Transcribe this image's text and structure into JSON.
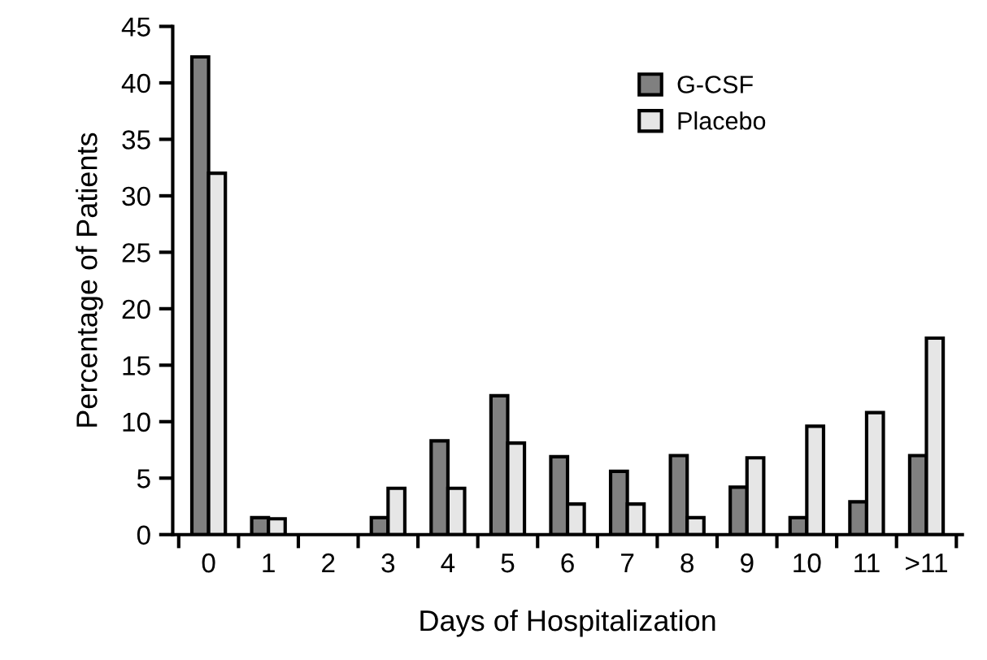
{
  "chart_data": {
    "type": "bar",
    "xlabel": "Days of Hospitalization",
    "ylabel": "Percentage of Patients",
    "categories": [
      "0",
      "1",
      "2",
      "3",
      "4",
      "5",
      "6",
      "7",
      "8",
      "9",
      "10",
      "11",
      ">11"
    ],
    "series": [
      {
        "name": "G-CSF",
        "color": "#808080",
        "values": [
          42.3,
          1.5,
          0,
          1.5,
          8.3,
          12.3,
          6.9,
          5.6,
          7.0,
          4.2,
          1.5,
          2.9,
          7.0
        ]
      },
      {
        "name": "Placebo",
        "color": "#e6e6e6",
        "values": [
          32.0,
          1.4,
          0,
          4.1,
          4.1,
          8.1,
          2.7,
          2.7,
          1.5,
          6.8,
          9.6,
          10.8,
          17.4
        ]
      }
    ],
    "ylim": [
      0,
      45
    ],
    "yticks": [
      0,
      5,
      10,
      15,
      20,
      25,
      30,
      35,
      40,
      45
    ],
    "grid": false,
    "legend": "top right"
  }
}
